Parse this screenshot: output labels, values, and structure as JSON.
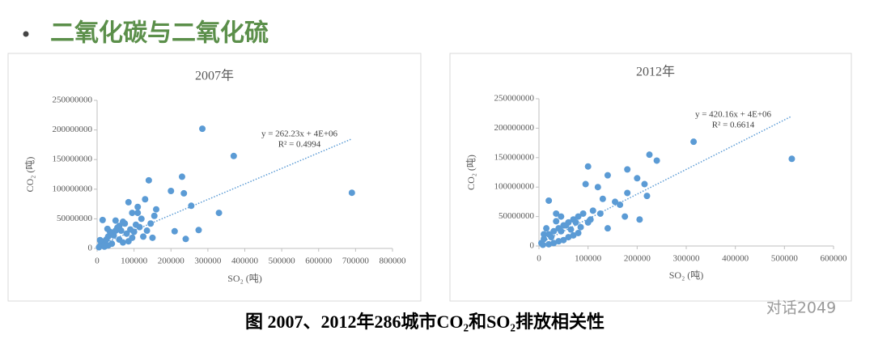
{
  "heading": "二氧化碳与二氧化硫",
  "caption": "图 2007、2012年286城市CO₂和SO₂排放相关性",
  "watermark": "对话2049",
  "chart_data": [
    {
      "type": "scatter",
      "title": "2007年",
      "x_label": "SO₂ (吨)",
      "y_label": "CO₂ (吨)",
      "color": "#5b9bd5",
      "x": [
        285000,
        370000,
        690000,
        140000,
        230000,
        200000,
        235000,
        255000,
        330000,
        275000,
        240000,
        210000,
        160000,
        155000,
        110000,
        85000,
        15000,
        130000,
        95000,
        120000,
        105000,
        70000,
        60000,
        50000,
        40000,
        30000,
        20000,
        10000,
        5000,
        25000,
        35000,
        45000,
        55000,
        65000,
        75000,
        80000,
        90000,
        100000,
        115000,
        125000,
        135000,
        145000,
        150000,
        60000,
        70000,
        40000,
        30000,
        20000,
        85000,
        95000,
        50000,
        110000,
        12000,
        8000,
        28000
      ],
      "values": [
        202000000,
        156000000,
        94000000,
        115000000,
        121000000,
        97000000,
        93000000,
        72000000,
        60000000,
        31000000,
        16000000,
        29000000,
        66000000,
        55000000,
        70000000,
        78000000,
        48000000,
        83000000,
        60000000,
        50000000,
        40000000,
        45000000,
        38000000,
        30000000,
        25000000,
        20000000,
        12000000,
        6000000,
        2000000,
        15000000,
        28000000,
        22000000,
        35000000,
        30000000,
        42000000,
        25000000,
        32000000,
        28000000,
        36000000,
        20000000,
        30000000,
        42000000,
        18000000,
        15000000,
        10000000,
        8000000,
        5000000,
        3000000,
        12000000,
        18000000,
        47000000,
        60000000,
        9000000,
        14000000,
        33000000
      ],
      "xlim": [
        0,
        800000
      ],
      "xticks": [
        0,
        100000,
        200000,
        300000,
        400000,
        500000,
        600000,
        700000,
        800000
      ],
      "ylim": [
        0,
        250000000
      ],
      "yticks": [
        0,
        50000000,
        100000000,
        150000000,
        200000000,
        250000000
      ],
      "trendline": {
        "slope": 262.23,
        "intercept": 4000000,
        "equation": "y = 262.23x + 4E+06",
        "r2": "R² = 0.4994"
      }
    },
    {
      "type": "scatter",
      "title": "2012年",
      "x_label": "SO₂ (吨)",
      "y_label": "CO₂ (吨)",
      "color": "#5b9bd5",
      "x": [
        515000,
        315000,
        225000,
        180000,
        100000,
        215000,
        140000,
        240000,
        220000,
        180000,
        200000,
        175000,
        205000,
        155000,
        120000,
        95000,
        20000,
        130000,
        165000,
        110000,
        90000,
        80000,
        70000,
        60000,
        50000,
        40000,
        30000,
        20000,
        10000,
        5000,
        15000,
        25000,
        35000,
        45000,
        55000,
        65000,
        75000,
        85000,
        105000,
        125000,
        140000,
        60000,
        50000,
        40000,
        30000,
        20000,
        10000,
        70000,
        80000,
        45000,
        100000,
        8000,
        35000
      ],
      "values": [
        148000000,
        177000000,
        155000000,
        130000000,
        135000000,
        105000000,
        120000000,
        145000000,
        85000000,
        90000000,
        115000000,
        50000000,
        45000000,
        75000000,
        100000000,
        105000000,
        77000000,
        80000000,
        70000000,
        60000000,
        55000000,
        50000000,
        45000000,
        40000000,
        35000000,
        30000000,
        25000000,
        20000000,
        12000000,
        5000000,
        30000000,
        15000000,
        42000000,
        25000000,
        35000000,
        28000000,
        40000000,
        32000000,
        45000000,
        55000000,
        30000000,
        15000000,
        10000000,
        8000000,
        5000000,
        3000000,
        20000000,
        18000000,
        22000000,
        50000000,
        40000000,
        2000000,
        55000000
      ],
      "xlim": [
        0,
        600000
      ],
      "xticks": [
        0,
        100000,
        200000,
        300000,
        400000,
        500000,
        600000
      ],
      "ylim": [
        0,
        250000000
      ],
      "yticks": [
        0,
        50000000,
        100000000,
        150000000,
        200000000,
        250000000
      ],
      "trendline": {
        "slope": 420.16,
        "intercept": 4000000,
        "equation": "y = 420.16x + 4E+06",
        "r2": "R² = 0.6614"
      }
    }
  ]
}
